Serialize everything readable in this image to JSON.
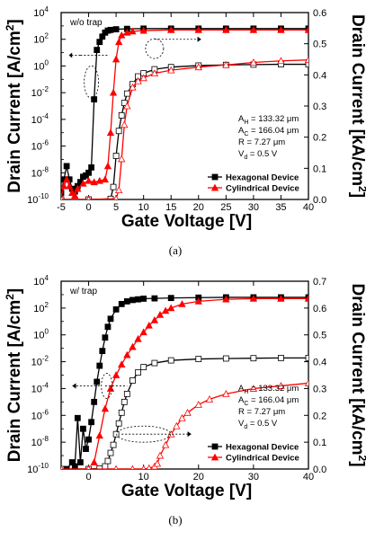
{
  "chart_data": [
    {
      "type": "line",
      "panel": "a",
      "caption": "(a)",
      "tag": "w/o trap",
      "xlabel": "Gate Voltage [V]",
      "ylabel_left": "Drain Current [A/cm2]",
      "ylabel_right": "Drain Current [kA/cm2]",
      "xlim": [
        -5,
        40
      ],
      "ylim_left_log10": [
        -10,
        4
      ],
      "ylim_right": [
        0.0,
        0.6
      ],
      "x_ticks": [
        -5,
        0,
        5,
        10,
        15,
        20,
        25,
        30,
        35,
        40
      ],
      "y_left_ticks": [
        "10^-10",
        "10^-8",
        "10^-6",
        "10^-4",
        "10^-2",
        "10^0",
        "10^2",
        "10^4"
      ],
      "y_right_ticks": [
        "0.0",
        "0.1",
        "0.2",
        "0.3",
        "0.4",
        "0.5",
        "0.6"
      ],
      "annotations": [
        "A_H = 133.32 μm",
        "A_C = 166.04 μm",
        "R = 7.27 μm",
        "V_d = 0.5 V"
      ],
      "legend": {
        "position": "bottom-right",
        "entries": [
          "Hexagonal Device",
          "Cylindrical Device"
        ]
      },
      "series": [
        {
          "name": "Hexagonal Device",
          "axis": "left-log",
          "color": "#000000",
          "marker": "square-filled",
          "x": [
            -5,
            -4.5,
            -4,
            -3.5,
            -3,
            -2.5,
            -2,
            -1.5,
            -1,
            -0.5,
            0,
            0.5,
            1,
            1.5,
            2,
            2.5,
            3,
            3.5,
            4,
            5,
            7,
            10,
            15,
            20,
            25,
            30,
            35,
            40
          ],
          "y_log10": [
            -9.5,
            -8.5,
            -7.5,
            -8.5,
            -9.2,
            -9.4,
            -9.0,
            -8.7,
            -8.3,
            -8.2,
            -8.0,
            -7.6,
            -2.5,
            1.2,
            1.8,
            2.2,
            2.5,
            2.65,
            2.7,
            2.75,
            2.78,
            2.8,
            2.8,
            2.8,
            2.8,
            2.8,
            2.8,
            2.8
          ]
        },
        {
          "name": "Cylindrical Device",
          "axis": "left-log",
          "color": "#ff0000",
          "marker": "triangle-filled",
          "x": [
            -5,
            -4.5,
            -4,
            -3.5,
            -3,
            -2.5,
            -2,
            -1,
            0,
            1,
            2,
            3,
            3.5,
            4,
            4.5,
            5,
            5.5,
            6,
            7,
            8,
            10,
            15,
            20,
            25,
            30,
            35,
            40
          ],
          "y_log10": [
            -9.8,
            -9.0,
            -8.5,
            -9.0,
            -9.5,
            -9.7,
            -9.2,
            -8.8,
            -8.6,
            -8.7,
            -8.6,
            -8.5,
            -7.5,
            -5.0,
            -2.0,
            0.5,
            1.8,
            2.3,
            2.5,
            2.6,
            2.65,
            2.7,
            2.7,
            2.7,
            2.7,
            2.7,
            2.7
          ]
        },
        {
          "name": "Hexagonal Device",
          "axis": "right-linear",
          "color": "#000000",
          "marker": "square-open",
          "x": [
            -5,
            0,
            4,
            4.5,
            5,
            5.5,
            6,
            6.5,
            7,
            8,
            9,
            10,
            12,
            15,
            20,
            25,
            30,
            35,
            40
          ],
          "y": [
            0,
            0,
            0.002,
            0.04,
            0.14,
            0.22,
            0.27,
            0.31,
            0.34,
            0.37,
            0.395,
            0.405,
            0.418,
            0.425,
            0.43,
            0.432,
            0.433,
            0.434,
            0.434
          ]
        },
        {
          "name": "Cylindrical Device",
          "axis": "right-linear",
          "color": "#ff0000",
          "marker": "triangle-open",
          "x": [
            -5,
            0,
            5,
            5.5,
            6,
            6.5,
            7,
            8,
            9,
            10,
            12,
            15,
            20,
            25,
            30,
            35,
            40
          ],
          "y": [
            0,
            0,
            0.002,
            0.03,
            0.13,
            0.24,
            0.3,
            0.36,
            0.38,
            0.39,
            0.405,
            0.415,
            0.425,
            0.432,
            0.44,
            0.445,
            0.448
          ]
        }
      ]
    },
    {
      "type": "line",
      "panel": "b",
      "caption": "(b)",
      "tag": "w/ trap",
      "xlabel": "Gate Voltage [V]",
      "ylabel_left": "Drain Current [A/cm2]",
      "ylabel_right": "Drain Current [kA/cm2]",
      "xlim": [
        -5,
        40
      ],
      "ylim_left_log10": [
        -10,
        4
      ],
      "ylim_right": [
        0.0,
        0.7
      ],
      "x_ticks": [
        0,
        10,
        20,
        30,
        40
      ],
      "y_left_ticks": [
        "10^-10",
        "10^-8",
        "10^-6",
        "10^-4",
        "10^-2",
        "10^0",
        "10^2",
        "10^4"
      ],
      "y_right_ticks": [
        "0.0",
        "0.1",
        "0.2",
        "0.3",
        "0.4",
        "0.5",
        "0.6",
        "0.7"
      ],
      "annotations": [
        "A_H = 133.32 μm",
        "A_C = 166.04 μm",
        "R = 7.27 μm",
        "V_d = 0.5 V"
      ],
      "legend": {
        "position": "bottom-right",
        "entries": [
          "Hexagonal Device",
          "Cylindrical Device"
        ]
      },
      "series": [
        {
          "name": "Hexagonal Device",
          "axis": "left-log",
          "color": "#000000",
          "marker": "square-filled",
          "x": [
            -4,
            -3,
            -2.5,
            -2,
            -1.5,
            -1,
            -0.5,
            0,
            0.5,
            1,
            1.5,
            2,
            2.5,
            3,
            3.5,
            4,
            5,
            6,
            7,
            8,
            9,
            10,
            12,
            15,
            20,
            25,
            30,
            35,
            40
          ],
          "y_log10": [
            -10,
            -9.5,
            -9.8,
            -6.2,
            -9.5,
            -7.0,
            -8.5,
            -7.8,
            -6.5,
            -5.0,
            -3.5,
            -2.3,
            -1.2,
            -0.2,
            0.6,
            1.2,
            1.9,
            2.3,
            2.5,
            2.6,
            2.65,
            2.7,
            2.72,
            2.75,
            2.78,
            2.8,
            2.8,
            2.8,
            2.8
          ]
        },
        {
          "name": "Cylindrical Device",
          "axis": "left-log",
          "color": "#ff0000",
          "marker": "triangle-filled",
          "x": [
            1,
            2,
            3,
            4,
            5,
            6,
            7,
            8,
            9,
            10,
            11,
            12,
            13,
            14,
            15,
            17,
            20,
            25,
            30,
            35,
            40
          ],
          "y_log10": [
            -9.5,
            -7.5,
            -5.5,
            -4.0,
            -3.0,
            -2.2,
            -1.5,
            -0.9,
            -0.3,
            0.2,
            0.7,
            1.1,
            1.5,
            1.8,
            2.0,
            2.3,
            2.5,
            2.65,
            2.7,
            2.7,
            2.7
          ]
        },
        {
          "name": "Hexagonal Device",
          "axis": "right-linear",
          "color": "#000000",
          "marker": "square-open",
          "x": [
            -5,
            0,
            2,
            3,
            3.5,
            4,
            4.5,
            5,
            5.5,
            6,
            6.5,
            7,
            8,
            9,
            10,
            12,
            15,
            20,
            25,
            30,
            35,
            40
          ],
          "y": [
            0,
            0,
            0.002,
            0.01,
            0.03,
            0.06,
            0.09,
            0.13,
            0.17,
            0.21,
            0.25,
            0.28,
            0.33,
            0.36,
            0.38,
            0.395,
            0.405,
            0.41,
            0.412,
            0.413,
            0.414,
            0.414
          ]
        },
        {
          "name": "Cylindrical Device",
          "axis": "right-linear",
          "color": "#ff0000",
          "marker": "triangle-open",
          "x": [
            -5,
            0,
            5,
            8,
            10,
            11,
            12,
            12.5,
            13,
            14,
            15,
            16,
            17,
            18,
            20,
            22,
            25,
            30,
            35,
            40
          ],
          "y": [
            0,
            0,
            0,
            0,
            0,
            0.003,
            0.01,
            0.02,
            0.05,
            0.09,
            0.13,
            0.16,
            0.19,
            0.21,
            0.24,
            0.26,
            0.28,
            0.3,
            0.31,
            0.32
          ]
        }
      ]
    }
  ]
}
